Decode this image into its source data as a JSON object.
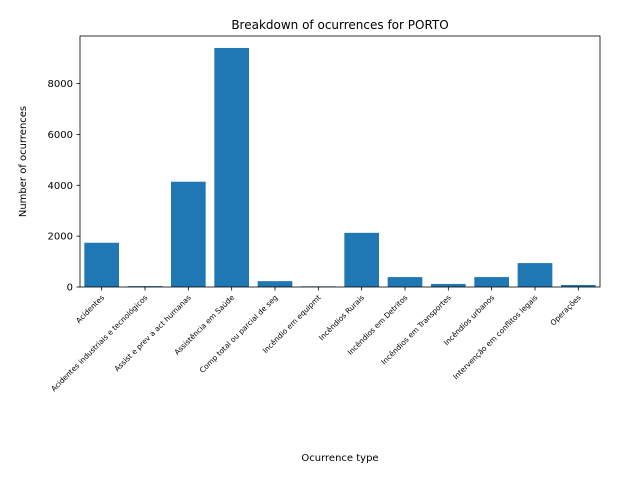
{
  "chart_data": {
    "type": "bar",
    "title": "Breakdown of ocurrences for PORTO",
    "xlabel": "Ocurrence type",
    "ylabel": "Number of ocurrences",
    "categories": [
      "Acidentes",
      "Acidentes industriais e tecnológicos",
      "Assist e prev a act humanas",
      "Assistência em Saúde",
      "Comp total ou parcial de seg",
      "Incêndio em equipmt",
      "Incêndios Rurais",
      "Incêndios em Detritos",
      "Incêndios em Transportes",
      "Incêndios urbanos",
      "Intervenção em conflitos legais",
      "Operações"
    ],
    "values": [
      1740,
      35,
      4140,
      9400,
      230,
      25,
      2130,
      390,
      120,
      390,
      940,
      80
    ],
    "ylim": [
      0,
      9870
    ],
    "yticks": [
      0,
      2000,
      4000,
      6000,
      8000
    ],
    "ytick_labels": [
      "0",
      "2000",
      "4000",
      "6000",
      "8000"
    ],
    "bar_color": "#1f77b4",
    "grid": false,
    "legend": "none"
  }
}
